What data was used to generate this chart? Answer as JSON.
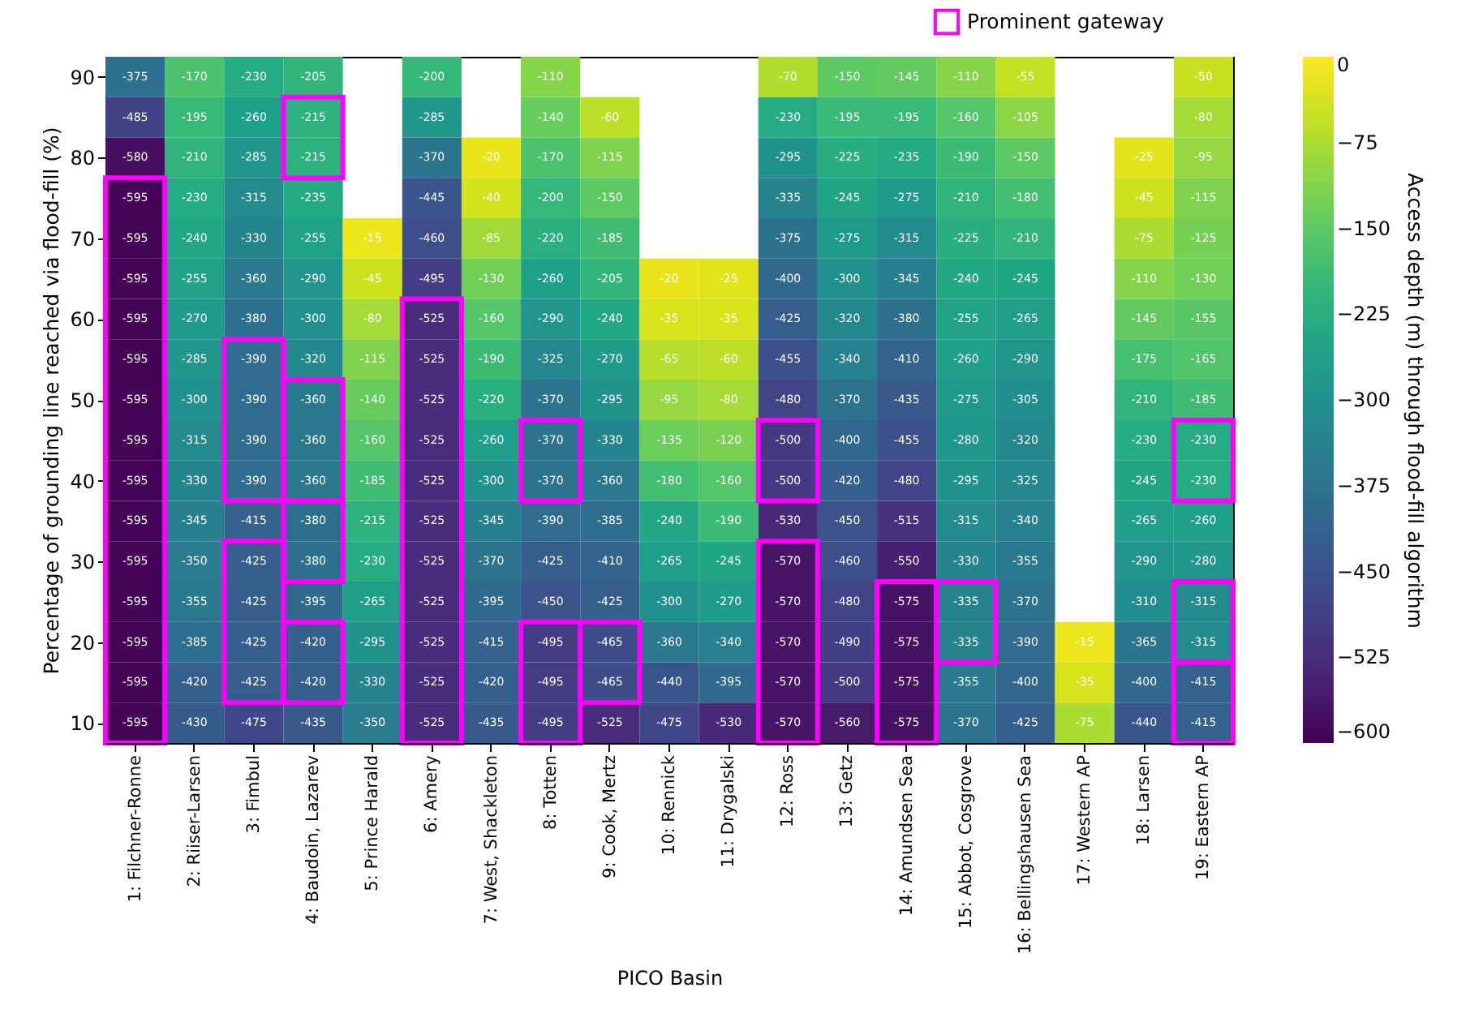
{
  "chart_data": {
    "type": "heatmap",
    "xlabel": "PICO Basin",
    "ylabel": "Percentage of grounding line reached via flood-fill (%)",
    "clabel": "Access depth (m) through flood-fill algorithm",
    "categories": [
      "1: Filchner-Ronne",
      "2: Riiser-Larsen",
      "3: Fimbul",
      "4: Baudoin, Lazarev",
      "5: Prince Harald",
      "6: Amery",
      "7: West, Shackleton",
      "8: Totten",
      "9: Cook, Mertz",
      "10: Rennick",
      "11: Drygalski",
      "12: Ross",
      "13: Getz",
      "14: Amundsen Sea",
      "15: Abbot, Cosgrove",
      "16: Bellingshausen Sea",
      "17: Western AP",
      "18: Larsen",
      "19: Eastern AP"
    ],
    "ylim": [
      7.5,
      92.5
    ],
    "yticks": [
      10,
      20,
      30,
      40,
      50,
      60,
      70,
      80,
      90
    ],
    "clim": [
      -600,
      0
    ],
    "cticks": [
      0,
      -75,
      -150,
      -225,
      -300,
      -375,
      -450,
      -525,
      -600
    ],
    "data_labels": true,
    "legend": "top right",
    "cells": [
      [
        -375,
        -170,
        -230,
        -205,
        null,
        -200,
        null,
        -110,
        null,
        null,
        null,
        -70,
        -150,
        -145,
        -110,
        -55,
        null,
        null,
        -50
      ],
      [
        -485,
        -195,
        -260,
        -215,
        null,
        -285,
        null,
        -140,
        -60,
        null,
        null,
        -230,
        -195,
        -195,
        -160,
        -105,
        null,
        null,
        -80
      ],
      [
        -580,
        -210,
        -285,
        -215,
        null,
        -370,
        -20,
        -170,
        -115,
        null,
        null,
        -295,
        -225,
        -235,
        -190,
        -150,
        null,
        -25,
        -95
      ],
      [
        -595,
        -230,
        -315,
        -235,
        null,
        -445,
        -40,
        -200,
        -150,
        null,
        null,
        -335,
        -245,
        -275,
        -210,
        -180,
        null,
        -45,
        -115
      ],
      [
        -595,
        -240,
        -330,
        -255,
        -15,
        -460,
        -85,
        -220,
        -185,
        null,
        null,
        -375,
        -275,
        -315,
        -225,
        -210,
        null,
        -75,
        -125
      ],
      [
        -595,
        -255,
        -360,
        -290,
        -45,
        -495,
        -130,
        -260,
        -205,
        -20,
        -25,
        -400,
        -300,
        -345,
        -240,
        -245,
        null,
        -110,
        -130
      ],
      [
        -595,
        -270,
        -380,
        -300,
        -80,
        -525,
        -160,
        -290,
        -240,
        -35,
        -35,
        -425,
        -320,
        -380,
        -255,
        -265,
        null,
        -145,
        -155
      ],
      [
        -595,
        -285,
        -390,
        -320,
        -115,
        -525,
        -190,
        -325,
        -270,
        -65,
        -60,
        -455,
        -340,
        -410,
        -260,
        -290,
        null,
        -175,
        -165
      ],
      [
        -595,
        -300,
        -390,
        -360,
        -140,
        -525,
        -220,
        -370,
        -295,
        -95,
        -80,
        -480,
        -370,
        -435,
        -275,
        -305,
        null,
        -210,
        -185
      ],
      [
        -595,
        -315,
        -390,
        -360,
        -160,
        -525,
        -260,
        -370,
        -330,
        -135,
        -120,
        -500,
        -400,
        -455,
        -280,
        -320,
        null,
        -230,
        -230
      ],
      [
        -595,
        -330,
        -390,
        -360,
        -185,
        -525,
        -300,
        -370,
        -360,
        -180,
        -160,
        -500,
        -420,
        -480,
        -295,
        -325,
        null,
        -245,
        -230
      ],
      [
        -595,
        -345,
        -415,
        -380,
        -215,
        -525,
        -345,
        -390,
        -385,
        -240,
        -190,
        -530,
        -450,
        -515,
        -315,
        -340,
        null,
        -265,
        -260
      ],
      [
        -595,
        -350,
        -425,
        -380,
        -230,
        -525,
        -370,
        -425,
        -410,
        -265,
        -245,
        -570,
        -460,
        -550,
        -330,
        -355,
        null,
        -290,
        -280
      ],
      [
        -595,
        -355,
        -425,
        -395,
        -265,
        -525,
        -395,
        -450,
        -425,
        -300,
        -270,
        -570,
        -480,
        -575,
        -335,
        -370,
        null,
        -310,
        -315
      ],
      [
        -595,
        -385,
        -425,
        -420,
        -295,
        -525,
        -415,
        -495,
        -465,
        -360,
        -340,
        -570,
        -490,
        -575,
        -335,
        -390,
        -15,
        -365,
        -315
      ],
      [
        -595,
        -420,
        -425,
        -420,
        -330,
        -525,
        -420,
        -495,
        -465,
        -440,
        -395,
        -570,
        -500,
        -575,
        -355,
        -400,
        -35,
        -400,
        -415
      ],
      [
        -595,
        -430,
        -475,
        -435,
        -350,
        -525,
        -435,
        -495,
        -525,
        -475,
        -530,
        -570,
        -560,
        -575,
        -370,
        -425,
        -75,
        -440,
        -415
      ]
    ],
    "series": [
      {
        "type": "bar",
        "name": "Prominent gateway",
        "color": "#ff00ff",
        "x": [
          "1: Filchner-Ronne",
          "4: Baudoin, Lazarev",
          "3: Fimbul",
          "4: Baudoin, Lazarev",
          "4: Baudoin, Lazarev",
          "3: Fimbul",
          "4: Baudoin, Lazarev",
          "6: Amery",
          "8: Totten",
          "8: Totten",
          "9: Cook, Mertz",
          "12: Ross",
          "12: Ross",
          "14: Amundsen Sea",
          "15: Abbot, Cosgrove",
          "19: Eastern AP",
          "19: Eastern AP",
          "19: Eastern AP"
        ],
        "base": [
          7.5,
          77.5,
          37.5,
          37.5,
          27.5,
          12.5,
          12.5,
          7.5,
          37.5,
          7.5,
          12.5,
          37.5,
          7.5,
          7.5,
          17.5,
          37.5,
          17.5,
          7.5
        ],
        "values": [
          70,
          10,
          20,
          15,
          10,
          20,
          10,
          55,
          10,
          15,
          10,
          10,
          25,
          20,
          10,
          10,
          10,
          10
        ],
        "value_labels": [
          null,
          null,
          null,
          null,
          null,
          null,
          null,
          null,
          null,
          null,
          null,
          null,
          null,
          null,
          null,
          null,
          null,
          null
        ]
      }
    ]
  }
}
